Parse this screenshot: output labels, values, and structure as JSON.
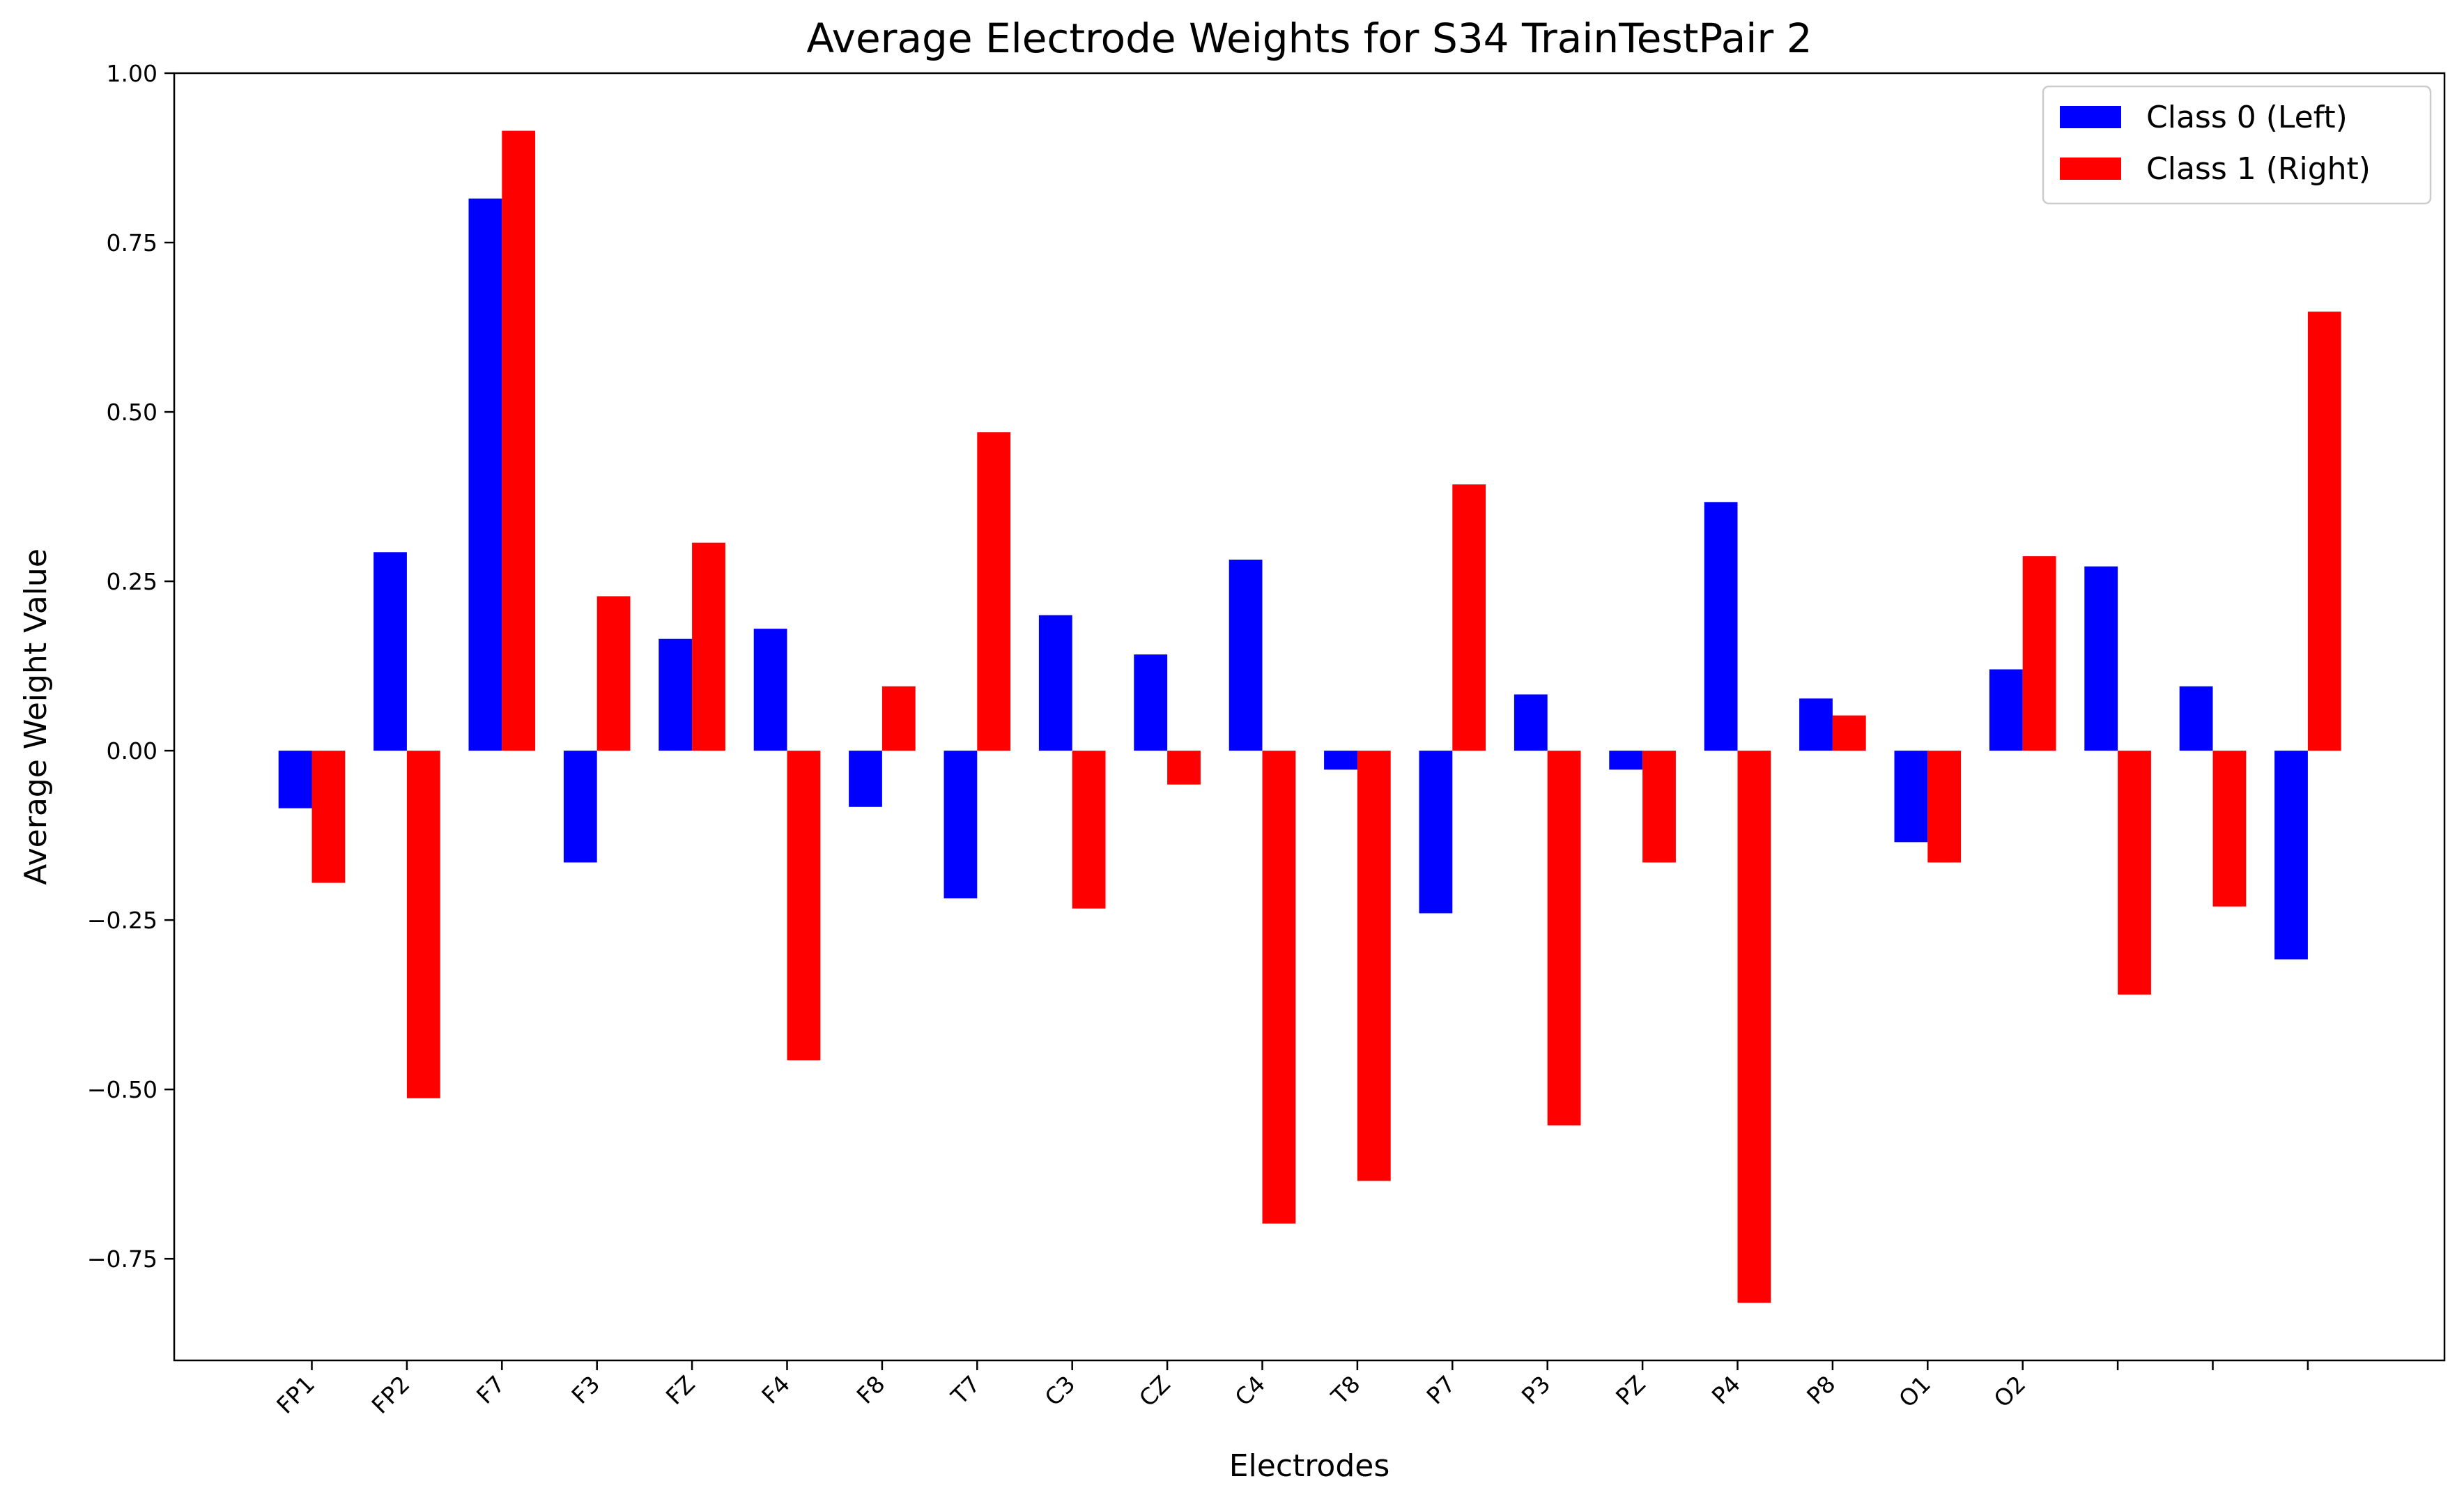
{
  "chart_data": {
    "type": "bar",
    "title": "Average Electrode Weights for S34 TrainTestPair 2",
    "xlabel": "Electrodes",
    "ylabel": "Average Weight Value",
    "ylim": [
      -0.9,
      1.0
    ],
    "yticks": [
      "1.00",
      "0.75",
      "0.50",
      "0.25",
      "0.00",
      "−0.25",
      "−0.50",
      "−0.75"
    ],
    "ytick_values": [
      1.0,
      0.75,
      0.5,
      0.25,
      0.0,
      -0.25,
      -0.5,
      -0.75
    ],
    "categories": [
      "FP1",
      "FP2",
      "F7",
      "F3",
      "FZ",
      "F4",
      "F8",
      "T7",
      "C3",
      "CZ",
      "C4",
      "T8",
      "P7",
      "P3",
      "PZ",
      "P4",
      "P8",
      "O1",
      "O2",
      "",
      "",
      ""
    ],
    "series": [
      {
        "name": "Class 0 (Left)",
        "color": "#0000ff",
        "values": [
          -0.085,
          0.293,
          0.815,
          -0.165,
          0.165,
          0.18,
          -0.083,
          -0.218,
          0.2,
          0.142,
          0.282,
          -0.028,
          -0.24,
          0.083,
          -0.028,
          0.367,
          0.077,
          -0.135,
          0.12,
          0.272,
          0.095,
          -0.308
        ]
      },
      {
        "name": "Class 1 (Right)",
        "color": "#ff0000",
        "values": [
          -0.195,
          -0.513,
          0.915,
          0.228,
          0.307,
          -0.457,
          0.095,
          0.47,
          -0.233,
          -0.05,
          -0.698,
          -0.635,
          0.393,
          -0.553,
          -0.165,
          -0.815,
          0.052,
          -0.165,
          0.287,
          -0.36,
          -0.23,
          0.648
        ]
      }
    ],
    "legend_position": "top-right",
    "grid": false
  }
}
